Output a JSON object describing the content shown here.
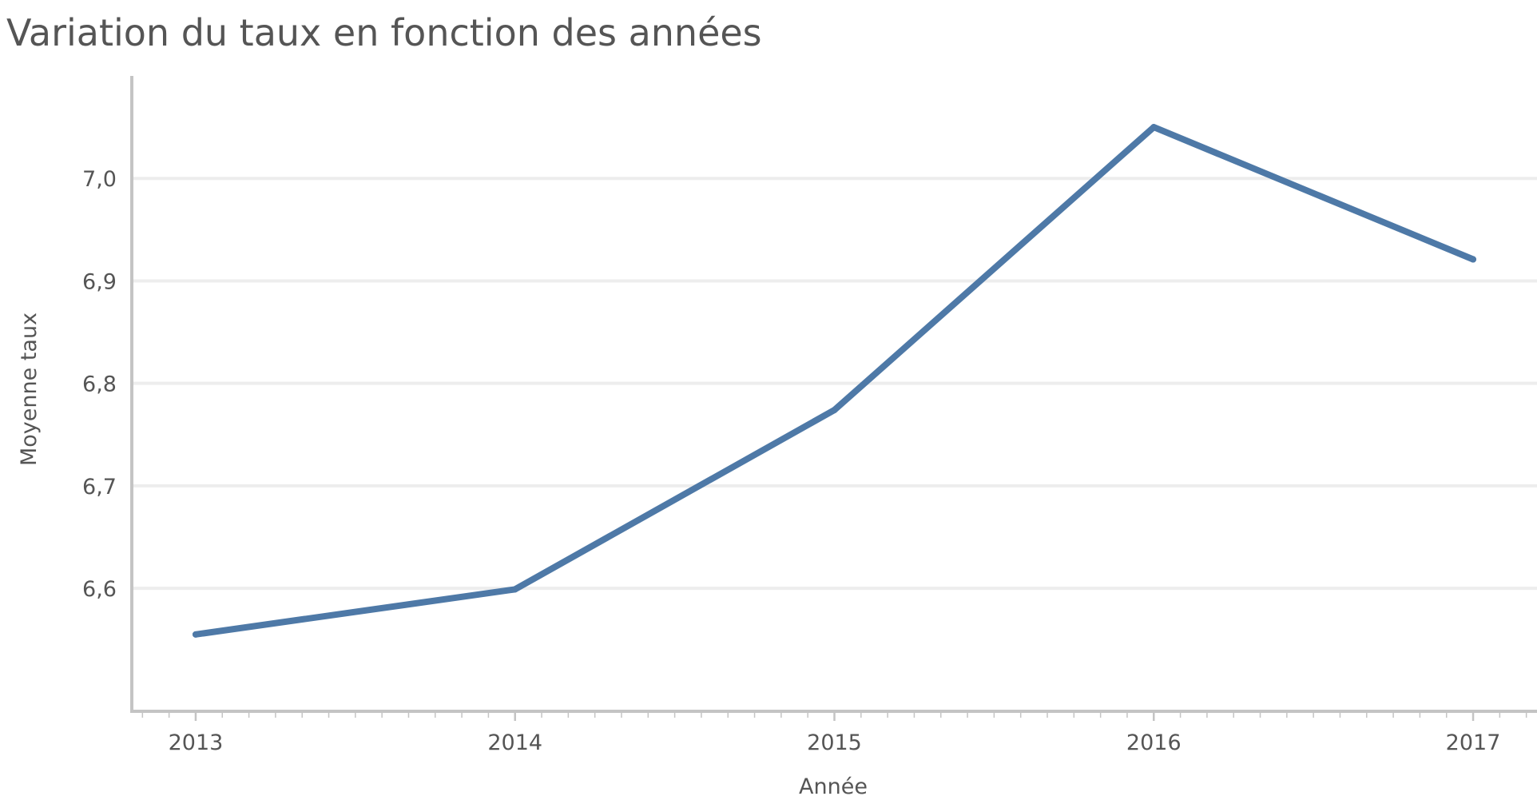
{
  "chart_data": {
    "type": "line",
    "title": "Variation du taux en fonction des années",
    "xlabel": "Année",
    "ylabel": "Moyenne taux",
    "x": [
      2013,
      2014,
      2015,
      2016,
      2017
    ],
    "x_tick_labels": [
      "2013",
      "2014",
      "2015",
      "2016",
      "2017"
    ],
    "series": [
      {
        "values": [
          6.555,
          6.599,
          6.774,
          7.05,
          6.921
        ]
      }
    ],
    "xlim": [
      2012.8,
      2017.2
    ],
    "ylim": [
      6.48,
      7.1
    ],
    "y_ticks": [
      6.6,
      6.7,
      6.8,
      6.9,
      7.0
    ],
    "y_tick_labels": [
      "6,6",
      "6,7",
      "6,8",
      "6,9",
      "7,0"
    ],
    "grid": "horizontal",
    "legend": "none",
    "line_color": "#4e79a7"
  }
}
